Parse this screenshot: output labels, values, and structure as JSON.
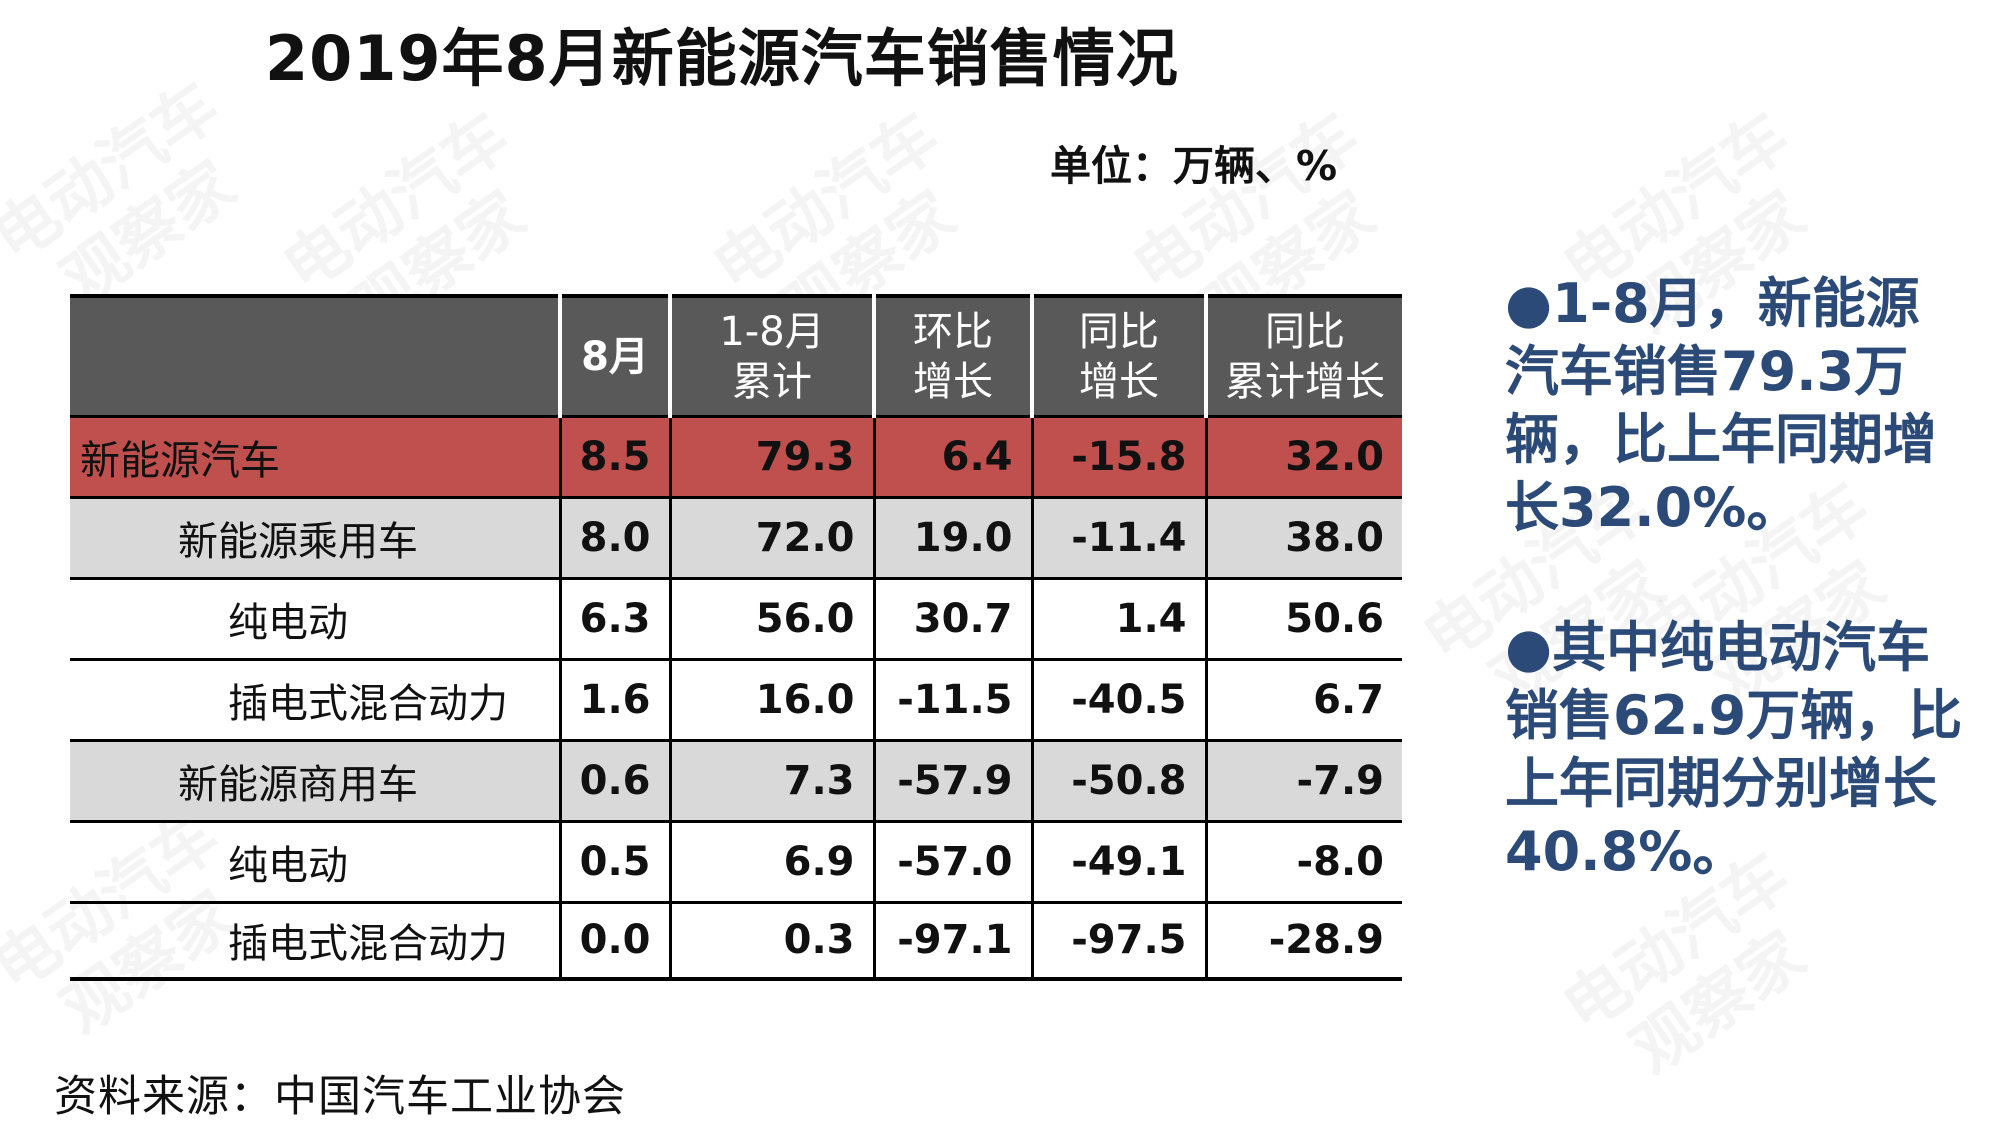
{
  "title": "2019年8月新能源汽车销售情况",
  "unit": "单位：万辆、%",
  "source": "资料来源：中国汽车工业协会",
  "watermark": "电动汽车观察家",
  "summary": [
    "●1-8月，新能源汽车销售79.3万辆，比上年同期增长32.0%。",
    "●其中纯电动汽车销售62.9万辆，比上年同期分别增长40.8%。"
  ],
  "colors": {
    "header_bg": "#595959",
    "highlight_row": "#c0504d",
    "subtotal_row": "#d9d9d9",
    "summary_text": "#2b4a78"
  },
  "chart_data": {
    "type": "table",
    "columns": [
      "",
      "8月",
      "1-8月\n累计",
      "环比\n增长",
      "同比\n增长",
      "同比\n累计增长"
    ],
    "rows": [
      {
        "label": "新能源汽车",
        "level": "top",
        "values": [
          "8.5",
          "79.3",
          "6.4",
          "-15.8",
          "32.0"
        ]
      },
      {
        "label": "新能源乘用车",
        "level": "sub",
        "values": [
          "8.0",
          "72.0",
          "19.0",
          "-11.4",
          "38.0"
        ]
      },
      {
        "label": "纯电动",
        "level": "leaf",
        "values": [
          "6.3",
          "56.0",
          "30.7",
          "1.4",
          "50.6"
        ]
      },
      {
        "label": "插电式混合动力",
        "level": "leaf",
        "values": [
          "1.6",
          "16.0",
          "-11.5",
          "-40.5",
          "6.7"
        ]
      },
      {
        "label": "新能源商用车",
        "level": "sub",
        "values": [
          "0.6",
          "7.3",
          "-57.9",
          "-50.8",
          "-7.9"
        ]
      },
      {
        "label": "纯电动",
        "level": "leaf",
        "values": [
          "0.5",
          "6.9",
          "-57.0",
          "-49.1",
          "-8.0"
        ]
      },
      {
        "label": "插电式混合动力",
        "level": "leaf",
        "values": [
          "0.0",
          "0.3",
          "-97.1",
          "-97.5",
          "-28.9"
        ]
      }
    ]
  }
}
